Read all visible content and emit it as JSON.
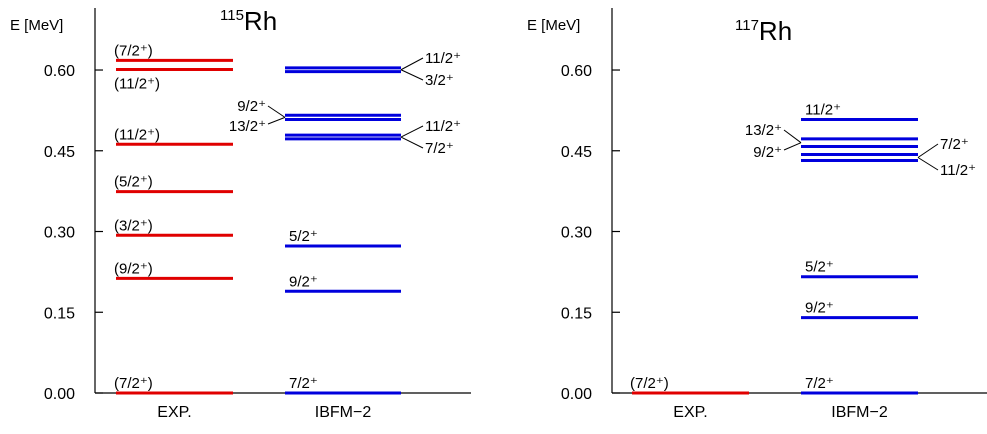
{
  "chart_data": [
    {
      "type": "level-scheme",
      "nucleus": {
        "mass": "115",
        "symbol": "Rh"
      },
      "ylabel": "E [MeV]",
      "ylim": [
        0,
        0.65
      ],
      "yticks": [
        "0.00",
        "0.15",
        "0.30",
        "0.45",
        "0.60"
      ],
      "columns": [
        "EXP.",
        "IBFM−2"
      ],
      "exp_color": "#e00000",
      "theory_color": "#0000dd",
      "exp_levels": [
        {
          "energy": 0.0,
          "label": "(7/2⁺)"
        },
        {
          "energy": 0.213,
          "label": "(9/2⁺)"
        },
        {
          "energy": 0.293,
          "label": "(3/2⁺)"
        },
        {
          "energy": 0.374,
          "label": "(5/2⁺)"
        },
        {
          "energy": 0.462,
          "label": "(11/2⁺)"
        },
        {
          "energy": 0.601,
          "label": "(11/2⁺)"
        },
        {
          "energy": 0.618,
          "label": "(7/2⁺)"
        }
      ],
      "theory_levels": [
        {
          "energy": 0.0,
          "label": "7/2⁺"
        },
        {
          "energy": 0.189,
          "label": "9/2⁺"
        },
        {
          "energy": 0.273,
          "label": "5/2⁺"
        },
        {
          "energy": 0.472,
          "label": "7/2⁺"
        },
        {
          "energy": 0.479,
          "label": "11/2⁺"
        },
        {
          "energy": 0.508,
          "label": "13/2⁺"
        },
        {
          "energy": 0.516,
          "label": "9/2⁺"
        },
        {
          "energy": 0.597,
          "label": "3/2⁺"
        },
        {
          "energy": 0.604,
          "label": "11/2⁺"
        }
      ]
    },
    {
      "type": "level-scheme",
      "nucleus": {
        "mass": "117",
        "symbol": "Rh"
      },
      "ylabel": "E [MeV]",
      "ylim": [
        0,
        0.65
      ],
      "yticks": [
        "0.00",
        "0.15",
        "0.30",
        "0.45",
        "0.60"
      ],
      "columns": [
        "EXP.",
        "IBFM−2"
      ],
      "exp_color": "#e00000",
      "theory_color": "#0000dd",
      "exp_levels": [
        {
          "energy": 0.0,
          "label": "(7/2⁺)"
        }
      ],
      "theory_levels": [
        {
          "energy": 0.0,
          "label": "7/2⁺"
        },
        {
          "energy": 0.14,
          "label": "9/2⁺"
        },
        {
          "energy": 0.216,
          "label": "5/2⁺"
        },
        {
          "energy": 0.432,
          "label": "11/2⁺"
        },
        {
          "energy": 0.443,
          "label": "7/2⁺"
        },
        {
          "energy": 0.458,
          "label": "9/2⁺"
        },
        {
          "energy": 0.472,
          "label": "13/2⁺"
        },
        {
          "energy": 0.508,
          "label": "11/2⁺"
        }
      ]
    }
  ]
}
